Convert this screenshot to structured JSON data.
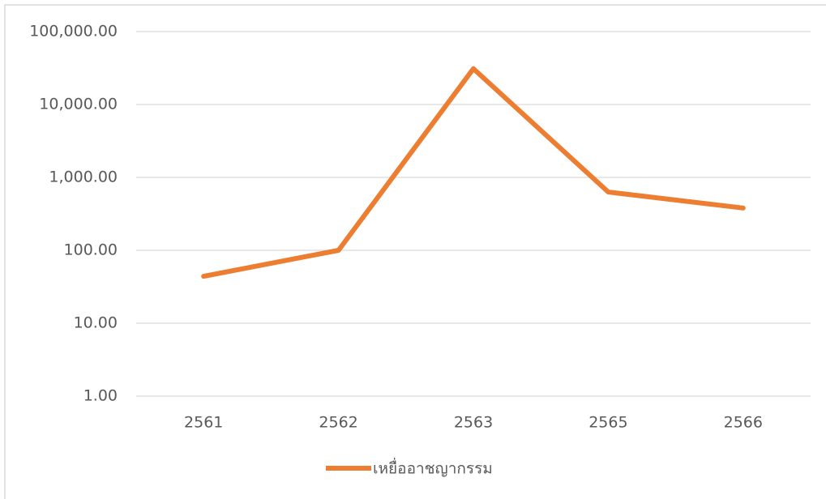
{
  "chart_data": {
    "type": "line",
    "categories": [
      "2561",
      "2562",
      "2563",
      "2565",
      "2566"
    ],
    "series": [
      {
        "name": "เหยื่ออาชญากรรม",
        "color": "#ed7d31",
        "values": [
          44,
          100,
          31000,
          630,
          380
        ]
      }
    ],
    "log_scale": true,
    "ylim": [
      1,
      100000
    ],
    "yticks": [
      {
        "value": 1,
        "label": "1.00"
      },
      {
        "value": 10,
        "label": "10.00"
      },
      {
        "value": 100,
        "label": "100.00"
      },
      {
        "value": 1000,
        "label": "1,000.00"
      },
      {
        "value": 10000,
        "label": "10,000.00"
      },
      {
        "value": 100000,
        "label": "100,000.00"
      }
    ],
    "grid": true,
    "legend": "bottom"
  }
}
